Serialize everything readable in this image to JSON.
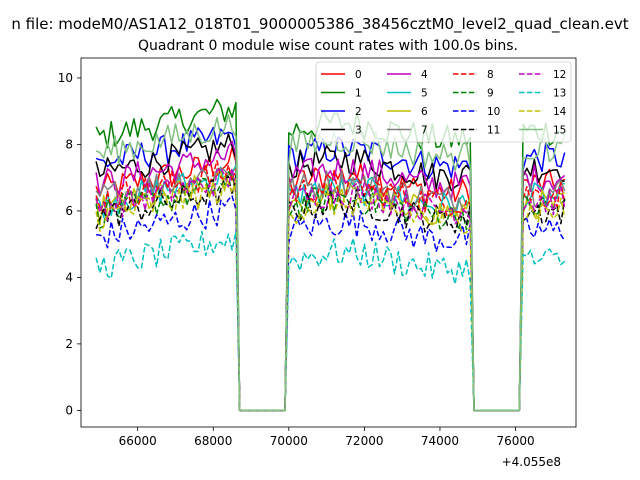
{
  "chart_data": {
    "type": "line",
    "suptitle": "n file: modeM0/AS1A12_018T01_9000005386_38456cztM0_level2_quad_clean.evt",
    "title": "Quadrant 0 module wise count rates with 100.0s bins.",
    "xlabel": "",
    "ylabel": "",
    "x_offset_label": "+4.055e8",
    "xlim": [
      64500,
      77600
    ],
    "ylim": [
      -0.5,
      10.6
    ],
    "xticks": [
      66000,
      68000,
      70000,
      72000,
      74000,
      76000
    ],
    "yticks": [
      0,
      2,
      4,
      6,
      8,
      10
    ],
    "grid": false,
    "legend_position": "top-right",
    "legend_columns": 4,
    "segments": [
      {
        "start": 64900,
        "end": 68600
      },
      {
        "start": 70000,
        "end": 74800
      },
      {
        "start": 76200,
        "end": 77300
      }
    ],
    "gap_value": 0,
    "series": [
      {
        "name": "0",
        "color": "#ff0000",
        "dash": "solid",
        "level": 6.8
      },
      {
        "name": "1",
        "color": "#008000",
        "dash": "solid",
        "level": 8.4
      },
      {
        "name": "2",
        "color": "#0000ff",
        "dash": "solid",
        "level": 7.6
      },
      {
        "name": "3",
        "color": "#000000",
        "dash": "solid",
        "level": 7.3
      },
      {
        "name": "4",
        "color": "#bf00bf",
        "dash": "solid",
        "level": 7.0
      },
      {
        "name": "5",
        "color": "#00bfbf",
        "dash": "solid",
        "level": 6.4
      },
      {
        "name": "6",
        "color": "#bfbf00",
        "dash": "solid",
        "level": 6.2
      },
      {
        "name": "7",
        "color": "#808080",
        "dash": "solid",
        "level": 6.6
      },
      {
        "name": "8",
        "color": "#ff0000",
        "dash": "dashed",
        "level": 6.5
      },
      {
        "name": "9",
        "color": "#008000",
        "dash": "dashed",
        "level": 6.1
      },
      {
        "name": "10",
        "color": "#0000ff",
        "dash": "dashed",
        "level": 5.4
      },
      {
        "name": "11",
        "color": "#000000",
        "dash": "dashed",
        "level": 6.0
      },
      {
        "name": "12",
        "color": "#bf00bf",
        "dash": "dashed",
        "level": 6.3
      },
      {
        "name": "13",
        "color": "#00bfbf",
        "dash": "dashed",
        "level": 4.5
      },
      {
        "name": "14",
        "color": "#bfbf00",
        "dash": "dashed",
        "level": 6.0
      },
      {
        "name": "15",
        "color": "#80c080",
        "dash": "solid",
        "level": 7.9
      }
    ]
  }
}
